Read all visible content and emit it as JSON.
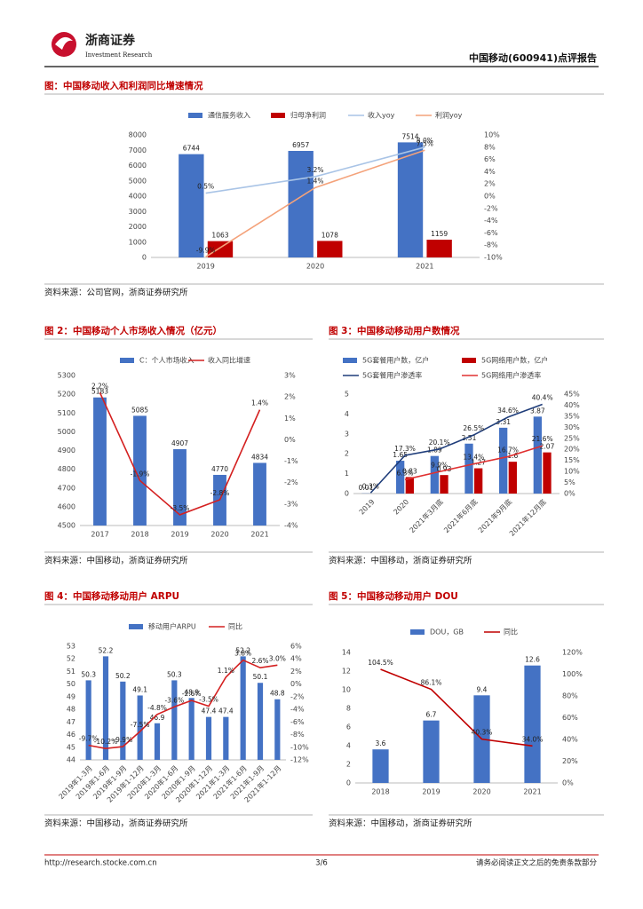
{
  "header": {
    "logo_text": "浙商证券",
    "logo_sub": "Investment Research",
    "report_title": "中国移动(600941)点评报告"
  },
  "footer": {
    "url": "http://research.stocke.com.cn",
    "page": "3/6",
    "disclaimer": "请务必阅读正文之后的免责条款部分"
  },
  "chart_data": [
    {
      "type": "combo",
      "title": "图：中国移动收入和利润同比增速情况",
      "source": "资料来源：公司官网，浙商证券研究所",
      "categories": [
        "2019",
        "2020",
        "2021"
      ],
      "series": [
        {
          "name": "通信服务收入",
          "type": "bar",
          "color": "#4472c4",
          "values": [
            6744,
            6957,
            7514
          ]
        },
        {
          "name": "归母净利润",
          "type": "bar",
          "color": "#c00000",
          "values": [
            1063,
            1078,
            1159
          ]
        },
        {
          "name": "收入yoy",
          "type": "line",
          "axis": "y2",
          "color": "#a9c4e6",
          "values": [
            0.5,
            3.2,
            8.0
          ],
          "value_labels": [
            "0.5%",
            "3.2%",
            "8.0%"
          ]
        },
        {
          "name": "利润yoy",
          "type": "line",
          "axis": "y2",
          "color": "#f4a27a",
          "values": [
            -9.9,
            1.4,
            7.5
          ],
          "value_labels": [
            "-9.9%",
            "1.4%",
            "7.5%"
          ]
        }
      ],
      "ylim": [
        0,
        8000
      ],
      "yticks": [
        0,
        1000,
        2000,
        3000,
        4000,
        5000,
        6000,
        7000,
        8000
      ],
      "y2lim": [
        -10,
        10
      ],
      "y2ticks": [
        {
          "value": -10,
          "label": "-10%"
        },
        {
          "value": -8,
          "label": "-8%"
        },
        {
          "value": -6,
          "label": "-6%"
        },
        {
          "value": -4,
          "label": "-4%"
        },
        {
          "value": -2,
          "label": "-2%"
        },
        {
          "value": 0,
          "label": "0%"
        },
        {
          "value": 2,
          "label": "2%"
        },
        {
          "value": 4,
          "label": "4%"
        },
        {
          "value": 6,
          "label": "6%"
        },
        {
          "value": 8,
          "label": "8%"
        },
        {
          "value": 10,
          "label": "10%"
        }
      ],
      "grid": false
    },
    {
      "type": "combo",
      "title": "图 2：中国移动个人市场收入情况（亿元）",
      "source": "资料来源：中国移动，浙商证券研究所",
      "categories": [
        "2017",
        "2018",
        "2019",
        "2020",
        "2021"
      ],
      "series": [
        {
          "name": "C：个人市场收入",
          "type": "bar",
          "color": "#4472c4",
          "values": [
            5183,
            5085,
            4907,
            4770,
            4834
          ]
        },
        {
          "name": "收入同比增速",
          "type": "line",
          "axis": "y2",
          "color": "#d42020",
          "values": [
            2.2,
            -1.9,
            -3.5,
            -2.8,
            1.4
          ],
          "value_labels": [
            "2.2%",
            "-1.9%",
            "-3.5%",
            "-2.8%",
            "1.4%"
          ]
        }
      ],
      "ylim": [
        4500,
        5300
      ],
      "yticks": [
        4500,
        4600,
        4700,
        4800,
        4900,
        5000,
        5100,
        5200,
        5300
      ],
      "y2lim": [
        -4,
        3
      ],
      "y2ticks": [
        {
          "value": -4,
          "label": "-4%"
        },
        {
          "value": -3,
          "label": "-3%"
        },
        {
          "value": -2,
          "label": "-2%"
        },
        {
          "value": -1,
          "label": "-1%"
        },
        {
          "value": 0,
          "label": "0%"
        },
        {
          "value": 1,
          "label": "1%"
        },
        {
          "value": 2,
          "label": "2%"
        },
        {
          "value": 3,
          "label": "3%"
        }
      ],
      "grid": false
    },
    {
      "type": "combo",
      "title": "图 3：中国移动移动用户数情况",
      "source": "资料来源：中国移动，浙商证券研究所",
      "categories": [
        "2019",
        "2020",
        "2021年3月底",
        "2021年6月底",
        "2021年9月底",
        "2021年12月底"
      ],
      "series": [
        {
          "name": "5G套餐用户数，亿户",
          "type": "bar",
          "color": "#4472c4",
          "values": [
            0.01,
            1.65,
            1.89,
            2.51,
            3.31,
            3.87
          ]
        },
        {
          "name": "5G网络用户数，亿户",
          "type": "bar",
          "color": "#c00000",
          "values": [
            null,
            0.83,
            0.93,
            1.27,
            1.6,
            2.07
          ]
        },
        {
          "name": "5G套餐用户渗透率",
          "type": "line",
          "axis": "y2",
          "color": "#1f3d7a",
          "values": [
            0.3,
            17.3,
            20.1,
            26.5,
            34.6,
            40.4
          ],
          "value_labels": [
            "0.3%",
            "17.3%",
            "20.1%",
            "26.5%",
            "34.6%",
            "40.4%"
          ]
        },
        {
          "name": "5G网络用户渗透率",
          "type": "line",
          "axis": "y2",
          "color": "#e03030",
          "values": [
            null,
            6.3,
            9.9,
            13.4,
            16.7,
            21.6
          ],
          "value_labels": [
            null,
            "6.3%",
            "9.9%",
            "13.4%",
            "16.7%",
            "21.6%"
          ]
        }
      ],
      "ylim": [
        0,
        5
      ],
      "yticks": [
        0,
        1,
        2,
        3,
        4,
        5
      ],
      "y2lim": [
        0,
        45
      ],
      "y2ticks": [
        {
          "value": 0,
          "label": "0%"
        },
        {
          "value": 5,
          "label": "5%"
        },
        {
          "value": 10,
          "label": "10%"
        },
        {
          "value": 15,
          "label": "15%"
        },
        {
          "value": 20,
          "label": "20%"
        },
        {
          "value": 25,
          "label": "25%"
        },
        {
          "value": 30,
          "label": "30%"
        },
        {
          "value": 35,
          "label": "35%"
        },
        {
          "value": 40,
          "label": "40%"
        },
        {
          "value": 45,
          "label": "45%"
        }
      ],
      "grid": false
    },
    {
      "type": "combo",
      "title": "图 4：中国移动移动用户 ARPU",
      "source": "资料来源：中国移动，浙商证券研究所",
      "categories": [
        "2019年1-3月",
        "2019年1-6月",
        "2019年1-9月",
        "2019年1-12月",
        "2020年1-3月",
        "2020年1-6月",
        "2020年1-9月",
        "2020年1-12月",
        "2021年1-3月",
        "2021年1-6月",
        "2021年1-9月",
        "2021年1-12月"
      ],
      "series": [
        {
          "name": "移动用户ARPU",
          "type": "bar",
          "color": "#4472c4",
          "values": [
            50.3,
            52.2,
            50.2,
            49.1,
            46.9,
            50.3,
            48.9,
            47.4,
            47.4,
            52.2,
            50.1,
            48.8
          ]
        },
        {
          "name": "同比",
          "type": "line",
          "axis": "y2",
          "color": "#d42020",
          "values": [
            -9.7,
            -10.2,
            -9.9,
            -7.5,
            -4.8,
            -3.6,
            -2.6,
            -3.5,
            1.1,
            3.8,
            2.6,
            3.0
          ],
          "value_labels": [
            "-9.7%",
            "-10.2%",
            "-9.9%",
            "-7.5%",
            "-4.8%",
            "-3.6%",
            "-2.6%",
            "-3.5%",
            "1.1%",
            "3.8%",
            "2.6%",
            "3.0%"
          ]
        }
      ],
      "ylim": [
        44,
        53
      ],
      "yticks": [
        44,
        45,
        46,
        47,
        48,
        49,
        50,
        51,
        52,
        53
      ],
      "y2lim": [
        -12,
        6
      ],
      "y2ticks": [
        {
          "value": -12,
          "label": "-12%"
        },
        {
          "value": -10,
          "label": "-10%"
        },
        {
          "value": -8,
          "label": "-8%"
        },
        {
          "value": -6,
          "label": "-6%"
        },
        {
          "value": -4,
          "label": "-4%"
        },
        {
          "value": -2,
          "label": "-2%"
        },
        {
          "value": 0,
          "label": "0%"
        },
        {
          "value": 2,
          "label": "2%"
        },
        {
          "value": 4,
          "label": "4%"
        },
        {
          "value": 6,
          "label": "6%"
        }
      ],
      "grid": false
    },
    {
      "type": "combo",
      "title": "图 5：中国移动移动用户 DOU",
      "source": "资料来源：中国移动，浙商证券研究所",
      "categories": [
        "2018",
        "2019",
        "2020",
        "2021"
      ],
      "series": [
        {
          "name": "DOU，GB",
          "type": "bar",
          "color": "#4472c4",
          "values": [
            3.6,
            6.7,
            9.4,
            12.6
          ]
        },
        {
          "name": "同比",
          "type": "line",
          "axis": "y2",
          "color": "#c00000",
          "values": [
            104.5,
            86.1,
            40.3,
            34.0
          ],
          "value_labels": [
            "104.5%",
            "86.1%",
            "40.3%",
            "34.0%"
          ]
        }
      ],
      "ylim": [
        0,
        14
      ],
      "yticks": [
        0,
        2,
        4,
        6,
        8,
        10,
        12,
        14
      ],
      "y2lim": [
        0,
        120
      ],
      "y2ticks": [
        {
          "value": 0,
          "label": "0%"
        },
        {
          "value": 20,
          "label": "20%"
        },
        {
          "value": 40,
          "label": "40%"
        },
        {
          "value": 60,
          "label": "60%"
        },
        {
          "value": 80,
          "label": "80%"
        },
        {
          "value": 100,
          "label": "100%"
        },
        {
          "value": 120,
          "label": "120%"
        }
      ],
      "grid": false
    }
  ]
}
